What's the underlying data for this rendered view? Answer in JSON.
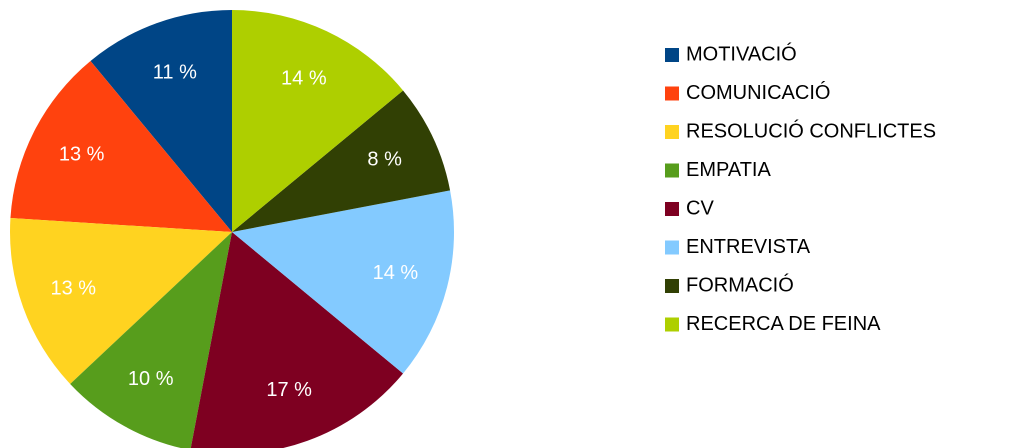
{
  "chart_data": {
    "type": "pie",
    "categories": [
      "MOTIVACIÓ",
      "COMUNICACIÓ",
      "RESOLUCIÓ CONFLICTES",
      "EMPATIA",
      "CV",
      "ENTREVISTA",
      "FORMACIÓ",
      "RECERCA DE FEINA"
    ],
    "values": [
      11,
      13,
      13,
      10,
      17,
      14,
      8,
      14
    ],
    "value_labels": [
      "11 %",
      "13 %",
      "13 %",
      "10 %",
      "17 %",
      "14 %",
      "8 %",
      "14 %"
    ],
    "colors": [
      "#004586",
      "#ff420e",
      "#ffd320",
      "#579d1c",
      "#7e0021",
      "#83caff",
      "#314004",
      "#aecf00"
    ],
    "legend": "right"
  }
}
